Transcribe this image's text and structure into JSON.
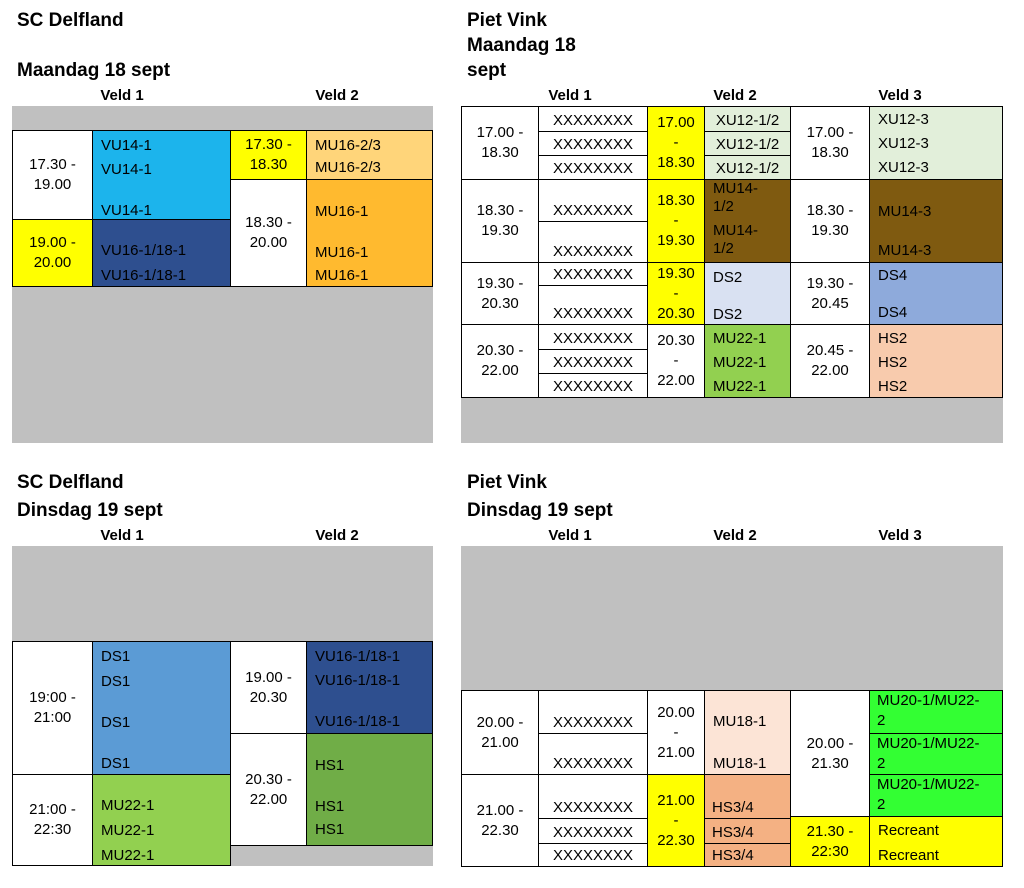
{
  "labels": {
    "veld1": "Veld 1",
    "veld2": "Veld 2",
    "veld3": "Veld 3",
    "x": "XXXXXXXX"
  },
  "colors": {
    "gray": "#c0c0c0",
    "yellow": "#ffff00",
    "light_blue": "#1cb4ec",
    "navy": "#2e4f8f",
    "light_orange": "#ffd57a",
    "orange": "#ffba2f",
    "light_green": "#e2efda",
    "brown": "#7f5a10",
    "lavender": "#d9e1f2",
    "periwinkle": "#8eaadb",
    "green": "#92d050",
    "peach": "#f8cbad",
    "steel_blue": "#5b9bd5",
    "olive_green": "#70ad47",
    "very_light_peach": "#fce4d6",
    "salmon": "#f4b183",
    "bright_green": "#33ff33"
  },
  "q1": {
    "title1": "SC Delfland",
    "title2": "Maandag 18 sept",
    "v1_times": [
      "17.30 -\n19.00",
      "19.00 -\n20.00"
    ],
    "v1_labels": [
      "VU14-1",
      "VU14-1",
      "VU14-1",
      "VU16-1/18-1",
      "VU16-1/18-1"
    ],
    "v2_times": [
      "17.30 -\n18.30",
      "18.30 -\n20.00"
    ],
    "v2_labels": [
      "MU16-2/3",
      "MU16-2/3",
      "MU16-1",
      "MU16-1",
      "MU16-1"
    ]
  },
  "q2": {
    "title1": "Piet Vink",
    "title2": "Maandag 18",
    "title3": "sept",
    "times": [
      "17.00 -\n18.30",
      "18.30 -\n19.30",
      "19.30 -\n20.30",
      "20.30 -\n22.00"
    ],
    "v2_times": [
      "17.00\n-\n18.30",
      "18.30\n-\n19.30",
      "19.30\n-\n20.30",
      "20.30\n-\n22.00"
    ],
    "v2_labels": [
      "XU12-1/2",
      "XU12-1/2",
      "XU12-1/2",
      "MU14-\n1/2",
      "MU14-\n1/2",
      "DS2",
      "DS2",
      "MU22-1",
      "MU22-1",
      "MU22-1"
    ],
    "v3_times": [
      "17.00 -\n18.30",
      "18.30 -\n19.30",
      "19.30 -\n20.45",
      "20.45 -\n22.00"
    ],
    "v3_labels": [
      "XU12-3",
      "XU12-3",
      "XU12-3",
      "MU14-3",
      "MU14-3",
      "DS4",
      "DS4",
      "HS2",
      "HS2",
      "HS2"
    ]
  },
  "q3": {
    "title1": "SC Delfland",
    "title2": "Dinsdag 19 sept",
    "v1_times": [
      "19:00 -\n21:00",
      "21:00 -\n22:30"
    ],
    "v1_labels": [
      "DS1",
      "DS1",
      "DS1",
      "DS1",
      "MU22-1",
      "MU22-1",
      "MU22-1"
    ],
    "v2_times": [
      "19.00 -\n20.30",
      "20.30 -\n22.00"
    ],
    "v2_labels": [
      "VU16-1/18-1",
      "VU16-1/18-1",
      "VU16-1/18-1",
      "HS1",
      "HS1",
      "HS1"
    ]
  },
  "q4": {
    "title1": "Piet Vink",
    "title2": "Dinsdag 19 sept",
    "times": [
      "20.00 -\n21.00",
      "21.00 -\n22.30"
    ],
    "v2_times": [
      "20.00\n-\n21.00",
      "21.00\n-\n22.30"
    ],
    "v2_labels": [
      "MU18-1",
      "MU18-1",
      "HS3/4",
      "HS3/4",
      "HS3/4"
    ],
    "v3_times": [
      "20.00 -\n21.30",
      "21.30 -\n22:30"
    ],
    "v3_labels": [
      "MU20-1/MU22-\n2",
      "MU20-1/MU22-\n2",
      "MU20-1/MU22-\n2",
      "Recreant",
      "Recreant"
    ]
  }
}
